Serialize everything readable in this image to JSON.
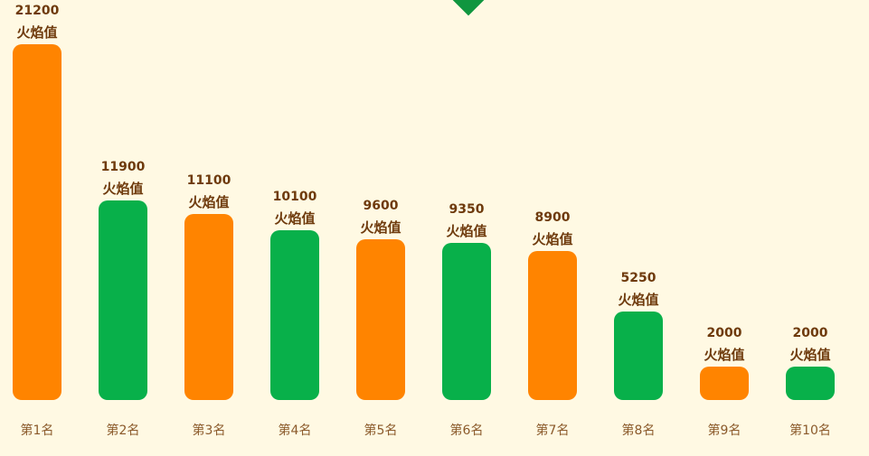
{
  "chart_data": {
    "type": "bar",
    "categories": [
      "第1名",
      "第2名",
      "第3名",
      "第4名",
      "第5名",
      "第6名",
      "第7名",
      "第8名",
      "第9名",
      "第10名"
    ],
    "values": [
      21200,
      11900,
      11100,
      10100,
      9600,
      9350,
      8900,
      5250,
      2000,
      2000
    ],
    "value_unit_label": "火焰值",
    "bar_colors": [
      "#ff8400",
      "#08b04a",
      "#ff8400",
      "#08b04a",
      "#ff8400",
      "#08b04a",
      "#ff8400",
      "#08b04a",
      "#ff8400",
      "#08b04a"
    ],
    "ylim": [
      0,
      21200
    ],
    "grid": false,
    "legend": "none"
  },
  "colors": {
    "background": "#fff9e3",
    "accent": "#10963f",
    "label_text": "#6e3a0c",
    "category_text": "#8b5a2b"
  }
}
